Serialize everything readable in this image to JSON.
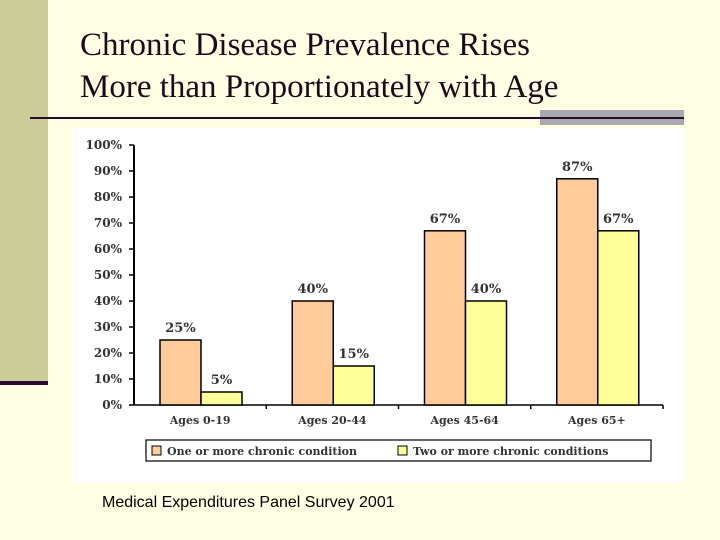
{
  "slide": {
    "title_lines": [
      "Chronic Disease Prevalence Rises",
      "More than Proportionately with Age"
    ],
    "footer": "Medical Expenditures Panel Survey 2001"
  },
  "colors": {
    "background": "#FFFFE3",
    "sidebar": "#CCCC99",
    "accent_dark": "#2B0B2B",
    "series1": "#FFCC99",
    "series2": "#FFFF99"
  },
  "chart_data": {
    "type": "bar",
    "title": "",
    "xlabel": "",
    "ylabel": "",
    "ylim": [
      0,
      100
    ],
    "yticks": [
      "0%",
      "10%",
      "20%",
      "30%",
      "40%",
      "50%",
      "60%",
      "70%",
      "80%",
      "90%",
      "100%"
    ],
    "categories": [
      "Ages 0-19",
      "Ages 20-44",
      "Ages 45-64",
      "Ages 65+"
    ],
    "series": [
      {
        "name": "One or more chronic condition",
        "values": [
          25,
          40,
          67,
          87
        ],
        "labels": [
          "25%",
          "40%",
          "67%",
          "87%"
        ],
        "color": "#FFCC99"
      },
      {
        "name": "Two or more chronic conditions",
        "values": [
          5,
          15,
          40,
          67
        ],
        "labels": [
          "5%",
          "15%",
          "40%",
          "67%"
        ],
        "color": "#FFFF99"
      }
    ],
    "grid": false,
    "legend": "bottom"
  }
}
